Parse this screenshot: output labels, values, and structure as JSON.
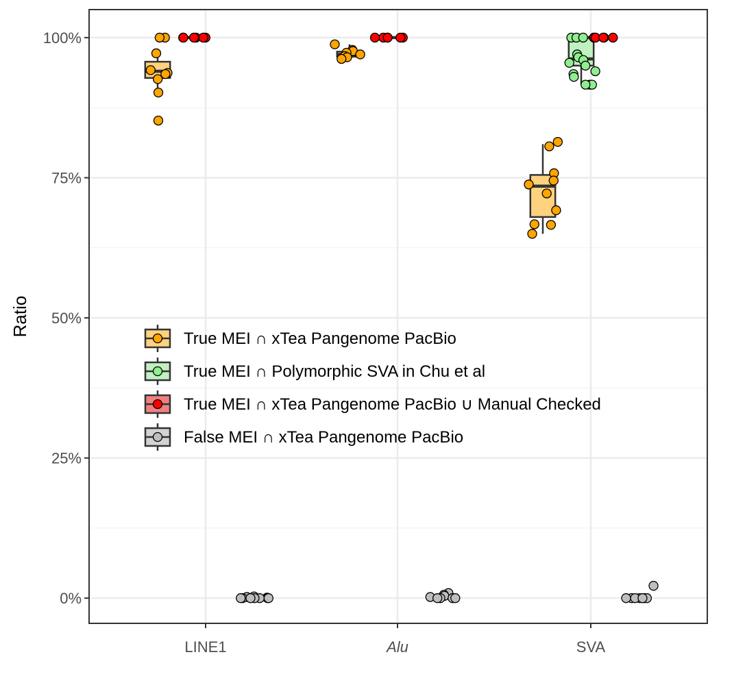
{
  "chart_data": {
    "type": "box",
    "ylabel": "Ratio",
    "xlabel": "",
    "ylim": [
      -0.045,
      1.05
    ],
    "yticks": [
      0,
      0.25,
      0.5,
      0.75,
      1.0
    ],
    "ytick_labels": [
      "0%",
      "25%",
      "50%",
      "75%",
      "100%"
    ],
    "categories": [
      "LINE1",
      "Alu",
      "SVA"
    ],
    "italic_categories": [
      "Alu"
    ],
    "grid": true,
    "legend_position": "center-left",
    "series": [
      {
        "name": "True MEI ∩ xTea Pangenome PacBio",
        "fill": "#FFD27F",
        "point": "#FFA500",
        "offset": -0.25,
        "boxes": [
          {
            "category": "LINE1",
            "lower": 0.905,
            "q1": 0.928,
            "median": 0.94,
            "q3": 0.957,
            "upper": 0.972,
            "points": [
              1.0,
              1.0,
              0.972,
              0.942,
              0.937,
              0.935,
              0.926,
              0.902,
              0.852
            ]
          },
          {
            "category": "Alu",
            "lower": 0.962,
            "q1": 0.966,
            "median": 0.97,
            "q3": 0.975,
            "upper": 0.988,
            "points": [
              0.988,
              0.978,
              0.976,
              0.973,
              0.97,
              0.967,
              0.965,
              0.962
            ]
          },
          {
            "category": "SVA",
            "lower": 0.65,
            "q1": 0.68,
            "median": 0.735,
            "q3": 0.755,
            "upper": 0.81,
            "points": [
              0.814,
              0.806,
              0.758,
              0.745,
              0.738,
              0.722,
              0.692,
              0.667,
              0.666,
              0.65
            ]
          }
        ]
      },
      {
        "name": "True MEI ∩ Polymorphic SVA in Chu et al",
        "fill": "#C1F0C1",
        "point": "#90EE90",
        "offset": -0.05,
        "boxes": [
          {
            "category": "SVA",
            "lower": 0.916,
            "q1": 0.95,
            "median": 0.962,
            "q3": 1.0,
            "upper": 1.0,
            "points": [
              1.0,
              1.0,
              1.0,
              1.0,
              0.97,
              0.965,
              0.96,
              0.955,
              0.95,
              0.94,
              0.935,
              0.93,
              0.916,
              0.916,
              0.916
            ]
          }
        ]
      },
      {
        "name": "True MEI ∩ xTea Pangenome PacBio ∪ Manual Checked",
        "fill": "#F08080",
        "point": "#FF0000",
        "offset": -0.05,
        "offset_sva": 0.05,
        "boxes": [
          {
            "category": "LINE1",
            "lower": 1.0,
            "q1": 1.0,
            "median": 1.0,
            "q3": 1.0,
            "upper": 1.0,
            "points": [
              1.0,
              1.0,
              1.0,
              1.0,
              1.0,
              1.0
            ]
          },
          {
            "category": "Alu",
            "lower": 1.0,
            "q1": 1.0,
            "median": 1.0,
            "q3": 1.0,
            "upper": 1.0,
            "points": [
              1.0,
              1.0,
              1.0,
              1.0,
              1.0,
              1.0
            ]
          },
          {
            "category": "SVA",
            "lower": 1.0,
            "q1": 1.0,
            "median": 1.0,
            "q3": 1.0,
            "upper": 1.0,
            "points": [
              1.0,
              1.0,
              1.0,
              1.0,
              1.0
            ]
          }
        ]
      },
      {
        "name": "False MEI ∩ xTea Pangenome PacBio",
        "fill": "#D3D3D3",
        "point": "#BEBEBE",
        "offset": 0.25,
        "boxes": [
          {
            "category": "LINE1",
            "lower": 0.0,
            "q1": 0.0,
            "median": 0.0,
            "q3": 0.0,
            "upper": 0.0,
            "points": [
              0.003,
              0.002,
              0.001,
              0.0,
              0.0,
              0.0,
              0.0,
              0.0,
              0.0,
              0.0
            ]
          },
          {
            "category": "Alu",
            "lower": 0.0,
            "q1": 0.0,
            "median": 0.0,
            "q3": 0.0,
            "upper": 0.0,
            "points": [
              0.009,
              0.006,
              0.004,
              0.002,
              0.0,
              0.0,
              0.0,
              0.0
            ]
          },
          {
            "category": "SVA",
            "lower": 0.0,
            "q1": 0.0,
            "median": 0.0,
            "q3": 0.0,
            "upper": 0.0,
            "points": [
              0.022,
              0.0,
              0.0,
              0.0,
              0.0,
              0.0,
              0.0,
              0.0
            ]
          }
        ]
      }
    ]
  }
}
